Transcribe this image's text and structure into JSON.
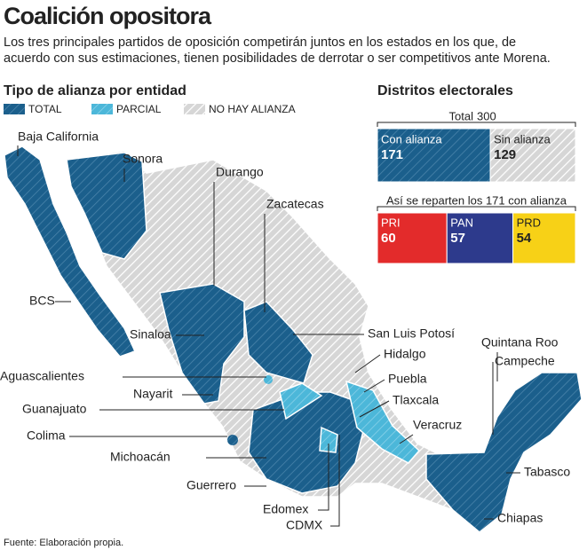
{
  "header": {
    "title": "Coalición opositora",
    "subtitle": [
      "Los tres principales partidos de oposición competirán juntos en los estados en los que, de",
      "acuerdo con sus estimaciones, tienen posibilidades de derrotar o ser competitivos ante Morena."
    ]
  },
  "map": {
    "title": "Tipo de alianza por entidad",
    "legend": [
      "TOTAL",
      "PARCIAL",
      "NO HAY ALIANZA"
    ],
    "states": [
      "Baja California",
      "Sonora",
      "Durango",
      "Zacatecas",
      "BCS",
      "San Luis Potosí",
      "Hidalgo",
      "Puebla",
      "Tlaxcala",
      "Veracruz",
      "Quintana Roo",
      "Campeche",
      "Sinaloa",
      "Aguascalientes",
      "Nayarit",
      "Guanajuato",
      "Colima",
      "Michoacán",
      "Guerrero",
      "Edomex",
      "CDMX",
      "Tabasco",
      "Chiapas"
    ]
  },
  "districts": {
    "title": "Distritos electorales",
    "total_label": "Total",
    "total": 300,
    "split": [
      {
        "label": "Con alianza",
        "value": 171
      },
      {
        "label": "Sin alianza",
        "value": 129
      }
    ],
    "parties_caption": "Así se reparten los 171 con alianza",
    "parties": [
      {
        "label": "PRI",
        "value": 60
      },
      {
        "label": "PAN",
        "value": 57
      },
      {
        "label": "PRD",
        "value": 54
      }
    ]
  },
  "source": "Fuente: Elaboración propia."
}
